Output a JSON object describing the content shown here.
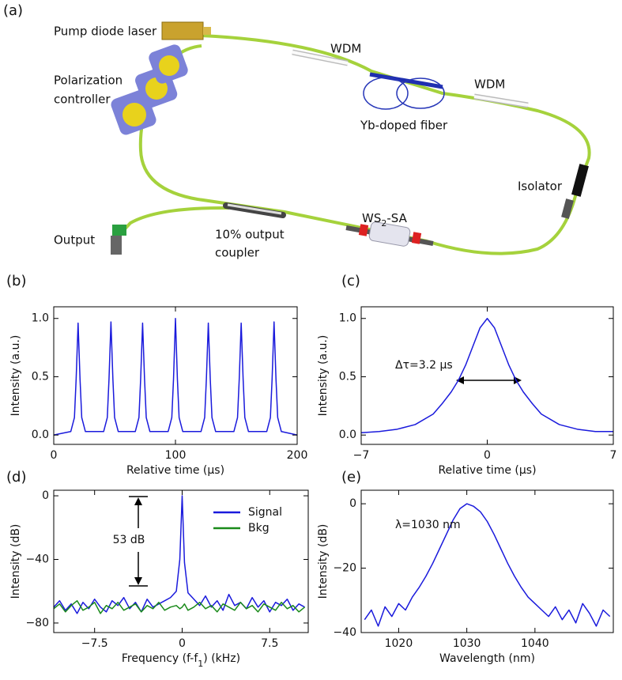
{
  "figure_labels": [
    "(a)",
    "(b)",
    "(c)",
    "(d)",
    "(e)"
  ],
  "diagram": {
    "pump": "Pump diode laser",
    "wdm_1": "WDM",
    "wdm_2": "WDM",
    "polarization_controller": [
      "Polarization",
      "controller"
    ],
    "yb_fiber": "Yb-doped fiber",
    "isolator": "Isolator",
    "output": "Output",
    "coupler": [
      "10% output",
      "coupler"
    ],
    "sa": {
      "text": "WS",
      "sub": "2",
      "tail": "-SA"
    }
  },
  "chart_data": [
    {
      "type": "line",
      "xlabel": "Relative time (μs)",
      "ylabel": "Intensity (a.u.)",
      "xlim": [
        0,
        200
      ],
      "ylim": [
        -0.08,
        1.1
      ],
      "xticks": [
        0,
        100,
        200
      ],
      "yticks": [
        {
          "value": 0,
          "label": "0.0"
        },
        0.5,
        {
          "value": 1,
          "label": "1.0"
        }
      ],
      "x": [
        0,
        14,
        17,
        18.4,
        20,
        21.6,
        23,
        26,
        41,
        44,
        45.4,
        47,
        48.6,
        50,
        53,
        67,
        70,
        71.4,
        73,
        74.6,
        76,
        79,
        94,
        97,
        98.4,
        100,
        101.6,
        103,
        106,
        121,
        124,
        125.4,
        127,
        128.6,
        130,
        133,
        148,
        151,
        152.4,
        154,
        155.6,
        157,
        160,
        175,
        178,
        179.4,
        181,
        182.6,
        184,
        187,
        200
      ],
      "series": [
        {
          "color": "#1a1adc",
          "values": [
            0.0,
            0.03,
            0.15,
            0.48,
            0.96,
            0.48,
            0.15,
            0.03,
            0.03,
            0.15,
            0.48,
            0.97,
            0.48,
            0.15,
            0.03,
            0.03,
            0.15,
            0.48,
            0.96,
            0.48,
            0.15,
            0.03,
            0.03,
            0.15,
            0.48,
            1.0,
            0.48,
            0.15,
            0.03,
            0.03,
            0.15,
            0.48,
            0.96,
            0.48,
            0.15,
            0.03,
            0.03,
            0.15,
            0.48,
            0.96,
            0.48,
            0.15,
            0.03,
            0.03,
            0.15,
            0.48,
            0.97,
            0.48,
            0.15,
            0.03,
            0.0
          ]
        }
      ]
    },
    {
      "type": "line",
      "xlabel": "Relative time (μs)",
      "ylabel": "Intensity (a.u.)",
      "xlim": [
        -7,
        7
      ],
      "ylim": [
        -0.08,
        1.1
      ],
      "xticks": [
        {
          "value": -7,
          "label": "−7"
        },
        0,
        7
      ],
      "yticks": [
        {
          "value": 0,
          "label": "0.0"
        },
        0.5,
        {
          "value": 1,
          "label": "1.0"
        }
      ],
      "annotation": "Δτ=3.2 μs",
      "x": [
        -7,
        -6,
        -5,
        -4,
        -3,
        -2.5,
        -2,
        -1.6,
        -1.2,
        -0.8,
        -0.4,
        0,
        0.4,
        0.8,
        1.2,
        1.6,
        2,
        2.5,
        3,
        4,
        5,
        6,
        7
      ],
      "series": [
        {
          "color": "#1a1adc",
          "values": [
            0.02,
            0.03,
            0.05,
            0.09,
            0.18,
            0.27,
            0.37,
            0.47,
            0.6,
            0.76,
            0.92,
            1.0,
            0.92,
            0.76,
            0.6,
            0.47,
            0.37,
            0.27,
            0.18,
            0.09,
            0.05,
            0.03,
            0.03
          ]
        }
      ]
    },
    {
      "type": "line",
      "xlabel": {
        "text": "Frequency (f-f",
        "sub": "1",
        "tail": ") (kHz)"
      },
      "ylabel": "Intensity (dB)",
      "xlim": [
        -11,
        10.8
      ],
      "ylim": [
        -86,
        3.5
      ],
      "xticks": [
        {
          "value": -7.5,
          "label": "−7.5"
        },
        0,
        7.5
      ],
      "yticks": [
        0,
        {
          "value": -40,
          "label": "−40"
        },
        {
          "value": -80,
          "label": "−80"
        }
      ],
      "annotation": "53 dB",
      "legend": "upper right",
      "x": [
        -11,
        -10.5,
        -10,
        -9.5,
        -9,
        -8.5,
        -8,
        -7.5,
        -7,
        -6.5,
        -6,
        -5.5,
        -5,
        -4.5,
        -4,
        -3.5,
        -3,
        -2.5,
        -2,
        -1.5,
        -1,
        -0.5,
        -0.2,
        0,
        0.2,
        0.5,
        1,
        1.5,
        2,
        2.5,
        3,
        3.5,
        4,
        4.5,
        5,
        5.5,
        6,
        6.5,
        7,
        7.5,
        8,
        8.5,
        9,
        9.5,
        10,
        10.5
      ],
      "series": [
        {
          "name": "Signal",
          "color": "#1a1adc",
          "values": [
            -70,
            -66,
            -72,
            -68,
            -74,
            -67,
            -71,
            -65,
            -70,
            -73,
            -66,
            -69,
            -64,
            -71,
            -67,
            -73,
            -65,
            -70,
            -68,
            -66,
            -64,
            -60,
            -40,
            0,
            -42,
            -61,
            -65,
            -69,
            -63,
            -70,
            -66,
            -72,
            -62,
            -69,
            -67,
            -71,
            -64,
            -70,
            -66,
            -73,
            -67,
            -69,
            -65,
            -72,
            -68,
            -70
          ]
        },
        {
          "name": "Bkg",
          "color": "#1a8a1a",
          "values": [
            -71,
            -68,
            -73,
            -69,
            -66,
            -72,
            -70,
            -67,
            -74,
            -69,
            -71,
            -67,
            -72,
            -70,
            -68,
            -73,
            -69,
            -71,
            -67,
            -72,
            -70,
            -69,
            -71,
            -70,
            -68,
            -72,
            -70,
            -67,
            -71,
            -69,
            -73,
            -68,
            -70,
            -72,
            -67,
            -71,
            -69,
            -73,
            -68,
            -70,
            -72,
            -67,
            -71,
            -69,
            -73,
            -70
          ]
        }
      ]
    },
    {
      "type": "line",
      "xlabel": "Wavelength (nm)",
      "ylabel": "Intensity (dB)",
      "xlim": [
        1014.5,
        1051.5
      ],
      "ylim": [
        -40,
        4.2
      ],
      "xticks": [
        1020,
        1030,
        1040
      ],
      "yticks": [
        0,
        {
          "value": -20,
          "label": "−20"
        },
        {
          "value": -40,
          "label": "−40"
        }
      ],
      "annotation": "λ=1030 nm",
      "x": [
        1015,
        1016,
        1017,
        1018,
        1019,
        1020,
        1021,
        1022,
        1023,
        1024,
        1025,
        1026,
        1027,
        1028,
        1029,
        1030,
        1031,
        1032,
        1033,
        1034,
        1035,
        1036,
        1037,
        1038,
        1039,
        1040,
        1041,
        1042,
        1043,
        1044,
        1045,
        1046,
        1047,
        1048,
        1049,
        1050,
        1051
      ],
      "series": [
        {
          "color": "#1a1adc",
          "values": [
            -36,
            -33,
            -38,
            -32,
            -35,
            -31,
            -33,
            -29,
            -26,
            -22.5,
            -18.5,
            -14,
            -9.5,
            -5,
            -1.5,
            0,
            -0.8,
            -2.5,
            -5.5,
            -9.5,
            -14,
            -18.5,
            -22.5,
            -26,
            -29,
            -31,
            -33,
            -35,
            -32,
            -36,
            -33,
            -37,
            -31,
            -34,
            -38,
            -33,
            -35
          ]
        }
      ]
    }
  ]
}
